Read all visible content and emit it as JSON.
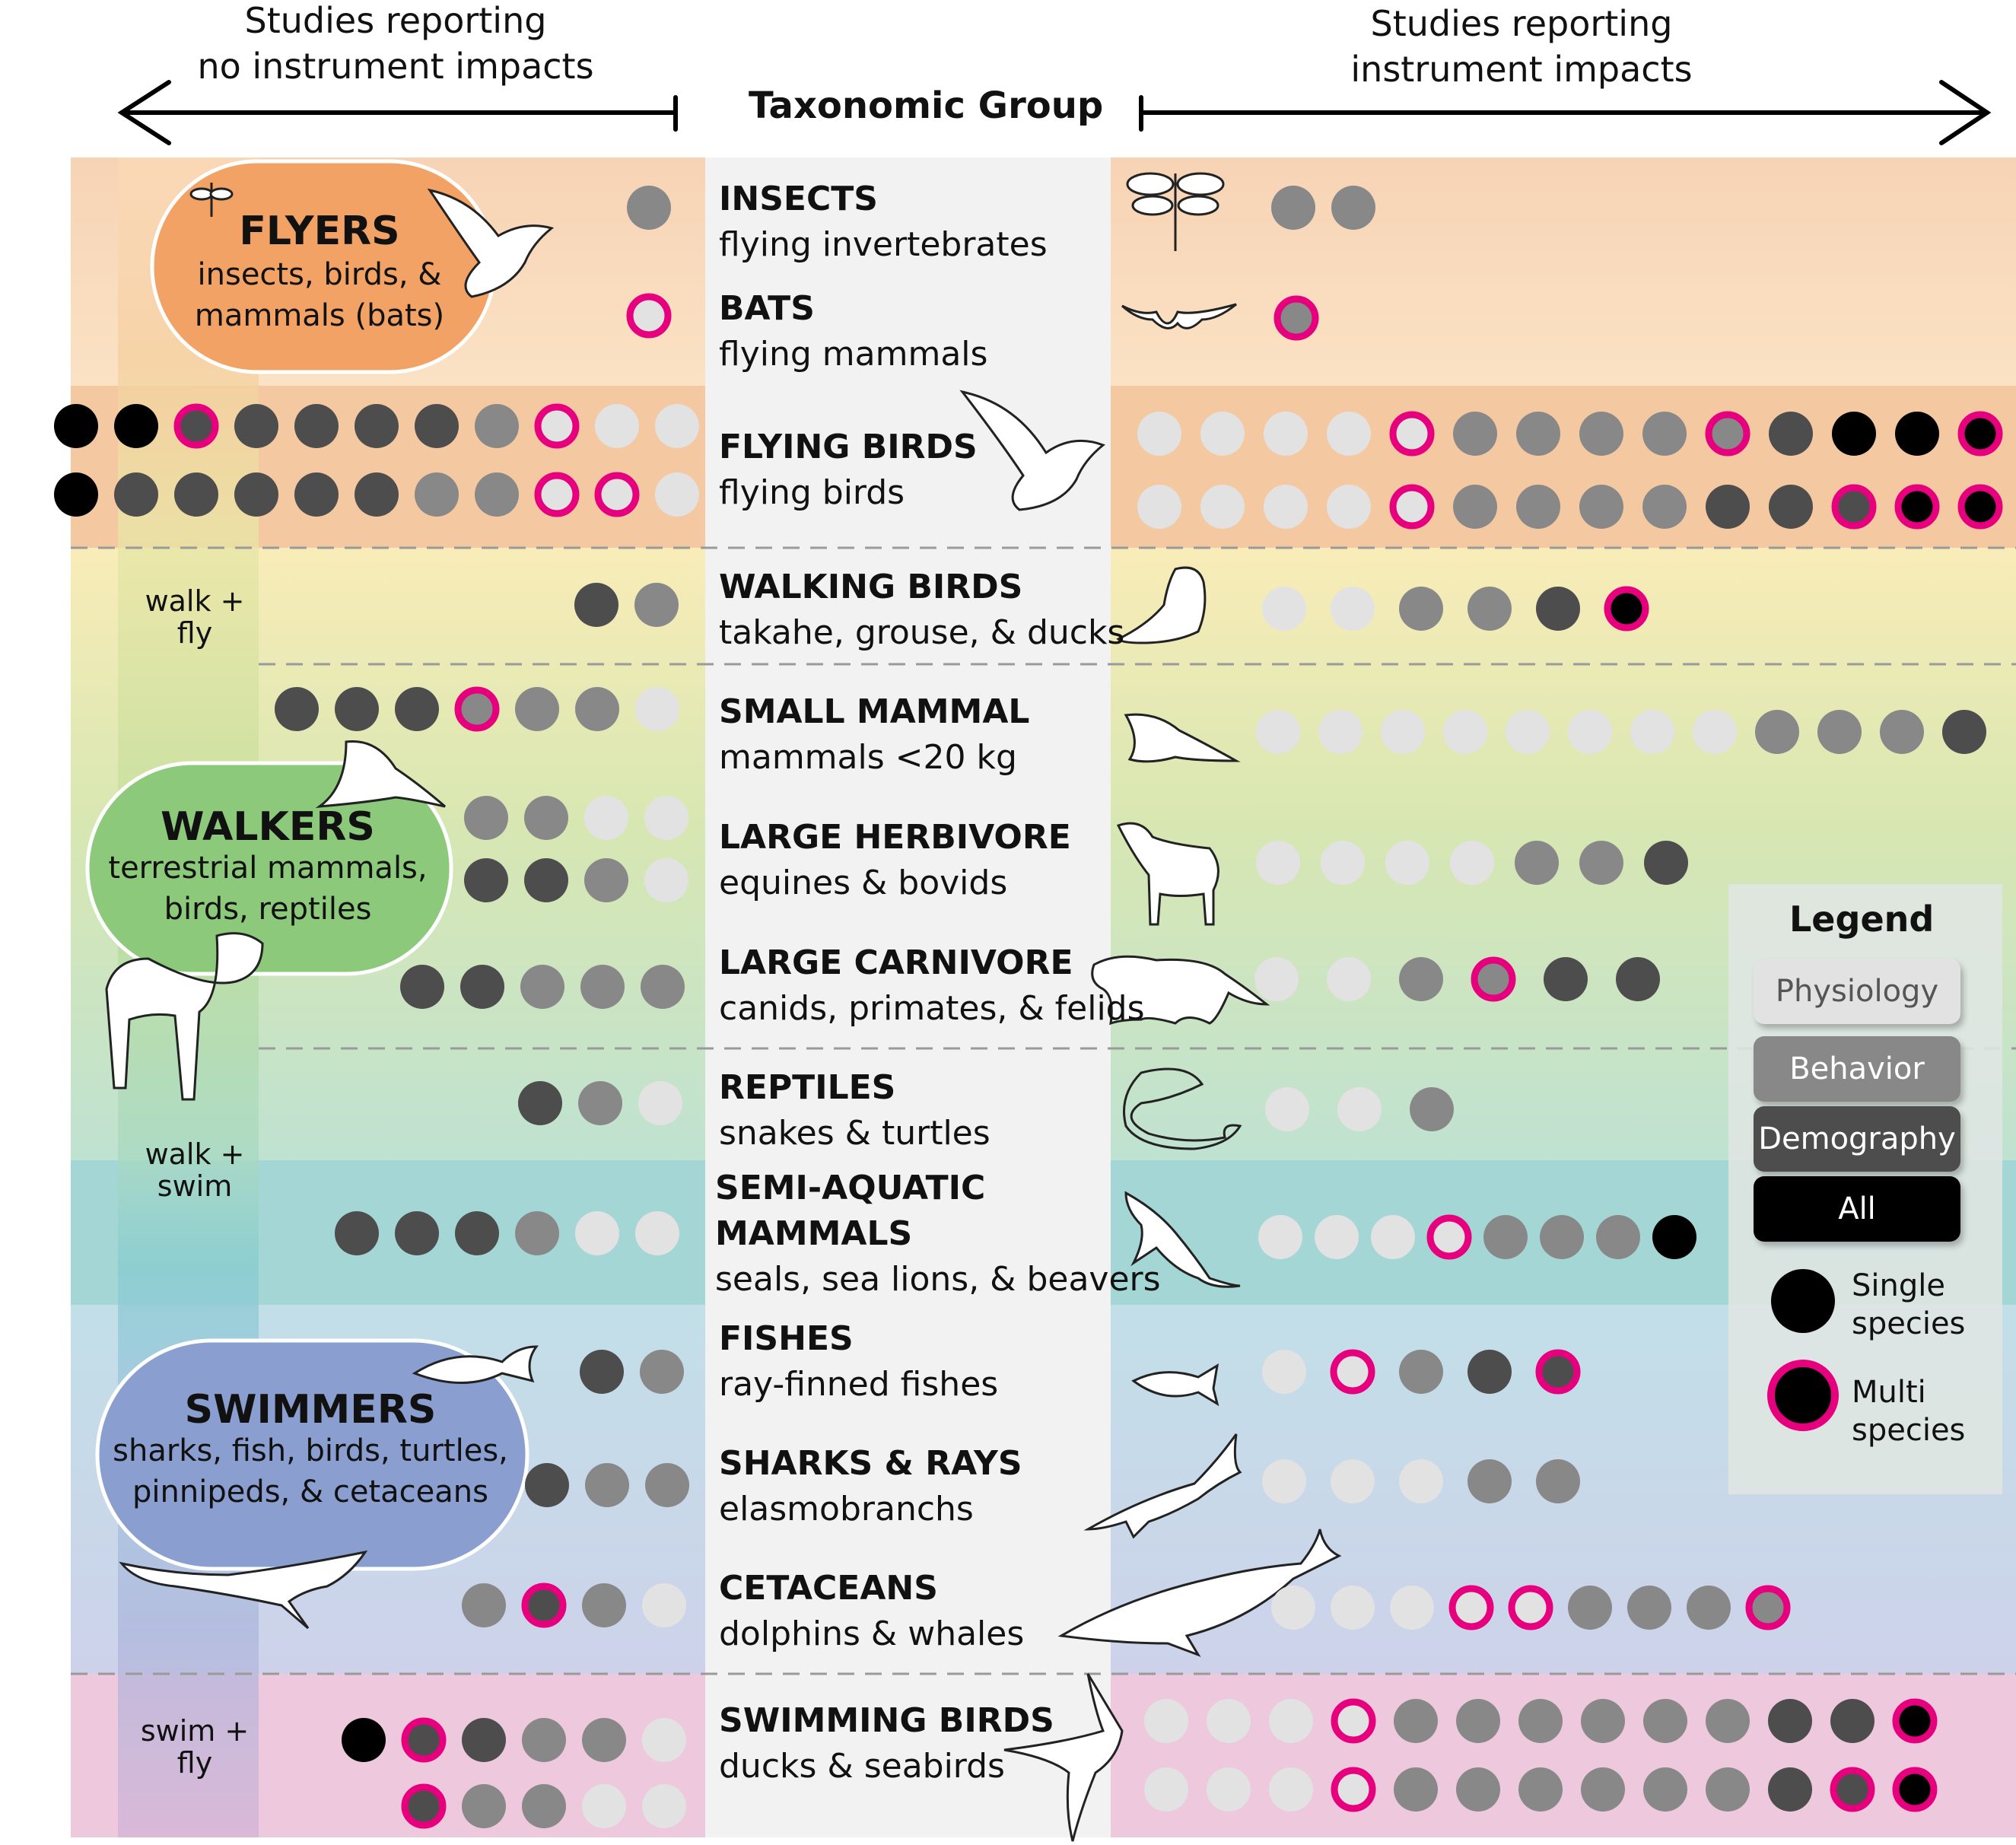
{
  "header": {
    "left_line1": "Studies reporting",
    "left_line2": "no instrument impacts",
    "center": "Taxonomic Group",
    "right_line1": "Studies reporting",
    "right_line2": "instrument impacts"
  },
  "bubbles": {
    "flyers": {
      "title": "FLYERS",
      "line1": "insects, birds, &",
      "line2": "mammals (bats)"
    },
    "walkers": {
      "title": "WALKERS",
      "line1": "terrestrial mammals,",
      "line2": "birds, reptiles"
    },
    "swimmers": {
      "title": "SWIMMERS",
      "line1": "sharks, fish, birds, turtles,",
      "line2": "pinnipeds, & cetaceans"
    }
  },
  "modes": {
    "walk_fly": {
      "line1": "walk +",
      "line2": "fly"
    },
    "walk_swim": {
      "line1": "walk +",
      "line2": "swim"
    },
    "swim_fly": {
      "line1": "swim +",
      "line2": "fly"
    }
  },
  "groups": [
    {
      "name": "INSECTS",
      "desc": "flying invertebrates"
    },
    {
      "name": "BATS",
      "desc": "flying mammals"
    },
    {
      "name": "FLYING BIRDS",
      "desc": "flying birds"
    },
    {
      "name": "WALKING BIRDS",
      "desc": "takahe, grouse, & ducks"
    },
    {
      "name": "SMALL MAMMAL",
      "desc": "mammals <20 kg"
    },
    {
      "name": "LARGE HERBIVORE",
      "desc": "equines & bovids"
    },
    {
      "name": "LARGE CARNIVORE",
      "desc": "canids, primates, & felids"
    },
    {
      "name": "REPTILES",
      "desc": "snakes & turtles"
    },
    {
      "name": "SEMI-AQUATIC",
      "name2": "MAMMALS",
      "desc": "seals, sea lions, & beavers"
    },
    {
      "name": "FISHES",
      "desc": "ray-finned fishes"
    },
    {
      "name": "SHARKS & RAYS",
      "desc": "elasmobranchs"
    },
    {
      "name": "CETACEANS",
      "desc": "dolphins & whales"
    },
    {
      "name": "SWIMMING BIRDS",
      "desc": "ducks & seabirds"
    }
  ],
  "legend": {
    "title": "Legend",
    "categories": [
      "Physiology",
      "Behavior",
      "Demography",
      "All"
    ],
    "single": {
      "line1": "Single",
      "line2": "species"
    },
    "multi": {
      "line1": "Multi",
      "line2": "species"
    }
  },
  "colors": {
    "Physiology": "#e2e2e2",
    "Behavior": "#888888",
    "Demography": "#4d4d4d",
    "All": "#000000",
    "multi_ring": "#e6007e"
  },
  "dot_key": {
    "P": "Physiology, single species",
    "B": "Behavior, single species",
    "D": "Demography, single species",
    "A": "All, single species",
    "p": "Physiology, multi species",
    "b": "Behavior, multi species",
    "d": "Demography, multi species",
    "a": "All, multi species"
  },
  "studies": [
    {
      "group": "INSECTS",
      "no_impact": [
        "B"
      ],
      "impact": [
        "B",
        "B"
      ]
    },
    {
      "group": "BATS",
      "no_impact": [
        "p"
      ],
      "impact": [
        "b"
      ]
    },
    {
      "group": "FLYING BIRDS",
      "no_impact": [
        "A",
        "A",
        "d",
        "D",
        "D",
        "D",
        "D",
        "B",
        "p",
        "P",
        "P",
        "A",
        "D",
        "D",
        "D",
        "D",
        "D",
        "B",
        "B",
        "p",
        "p",
        "P"
      ],
      "impact": [
        "P",
        "P",
        "P",
        "P",
        "p",
        "B",
        "B",
        "B",
        "B",
        "b",
        "D",
        "A",
        "A",
        "a",
        "P",
        "P",
        "P",
        "P",
        "p",
        "B",
        "B",
        "B",
        "B",
        "D",
        "D",
        "d",
        "a",
        "a"
      ]
    },
    {
      "group": "WALKING BIRDS",
      "no_impact": [
        "D",
        "B"
      ],
      "impact": [
        "P",
        "P",
        "B",
        "B",
        "D",
        "a"
      ]
    },
    {
      "group": "SMALL MAMMAL",
      "no_impact": [
        "D",
        "D",
        "D",
        "b",
        "B",
        "B",
        "P"
      ],
      "impact": [
        "P",
        "P",
        "P",
        "P",
        "P",
        "P",
        "P",
        "P",
        "B",
        "B",
        "B",
        "D"
      ]
    },
    {
      "group": "LARGE HERBIVORE",
      "no_impact": [
        "B",
        "B",
        "P",
        "P",
        "D",
        "D",
        "B",
        "P"
      ],
      "impact": [
        "P",
        "P",
        "P",
        "P",
        "B",
        "B",
        "D"
      ]
    },
    {
      "group": "LARGE CARNIVORE",
      "no_impact": [
        "D",
        "D",
        "B",
        "B",
        "B"
      ],
      "impact": [
        "P",
        "P",
        "B",
        "b",
        "D",
        "D"
      ]
    },
    {
      "group": "REPTILES",
      "no_impact": [
        "D",
        "B",
        "P"
      ],
      "impact": [
        "P",
        "P",
        "B"
      ]
    },
    {
      "group": "SEMI-AQUATIC MAMMALS",
      "no_impact": [
        "D",
        "D",
        "D",
        "B",
        "P",
        "P"
      ],
      "impact": [
        "P",
        "P",
        "P",
        "p",
        "B",
        "B",
        "B",
        "A"
      ]
    },
    {
      "group": "FISHES",
      "no_impact": [
        "D",
        "B"
      ],
      "impact": [
        "P",
        "p",
        "B",
        "D",
        "d"
      ]
    },
    {
      "group": "SHARKS & RAYS",
      "no_impact": [
        "D",
        "B",
        "B"
      ],
      "impact": [
        "P",
        "P",
        "P",
        "B",
        "B"
      ]
    },
    {
      "group": "CETACEANS",
      "no_impact": [
        "B",
        "d",
        "B",
        "P"
      ],
      "impact": [
        "P",
        "P",
        "P",
        "p",
        "p",
        "B",
        "B",
        "B",
        "b"
      ]
    },
    {
      "group": "SWIMMING BIRDS",
      "no_impact": [
        "A",
        "d",
        "D",
        "B",
        "B",
        "P",
        "d",
        "B",
        "B",
        "P",
        "P"
      ],
      "impact": [
        "P",
        "P",
        "P",
        "p",
        "B",
        "B",
        "B",
        "B",
        "B",
        "B",
        "D",
        "D",
        "a",
        "P",
        "P",
        "P",
        "p",
        "B",
        "B",
        "B",
        "B",
        "B",
        "B",
        "D",
        "d",
        "a"
      ]
    }
  ],
  "icons": [
    "dragonfly-icon",
    "bat-icon",
    "pigeon-icon",
    "grouse-icon",
    "bandicoot-icon",
    "goat-icon",
    "cougar-icon",
    "snake-icon",
    "seal-icon",
    "fish-icon",
    "shark-icon",
    "whale-icon",
    "albatross-icon"
  ]
}
